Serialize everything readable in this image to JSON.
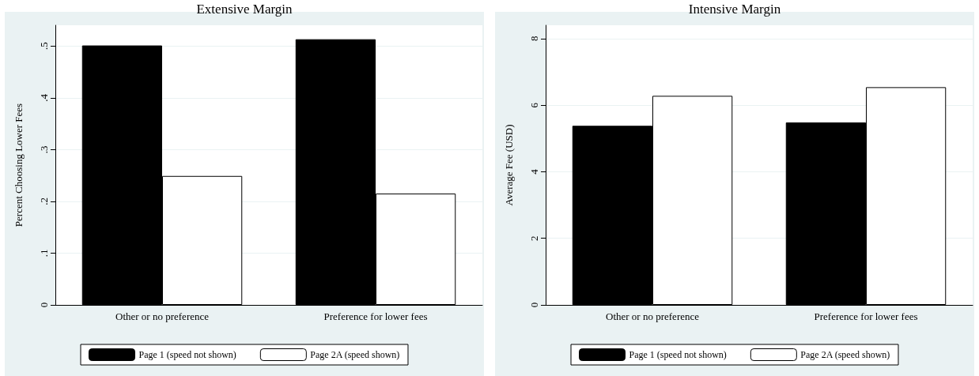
{
  "chart_data": [
    {
      "type": "bar",
      "title": "Extensive Margin",
      "ylabel": "Percent Choosing Lower Fees",
      "categories": [
        "Other or no preference",
        "Preference for lower fees"
      ],
      "series": [
        {
          "name": "Page 1 (speed not shown)",
          "color": "#000000",
          "values": [
            0.501,
            0.513
          ]
        },
        {
          "name": "Page 2A (speed shown)",
          "color": "#ffffff",
          "values": [
            0.249,
            0.215
          ]
        }
      ],
      "ylim": [
        0,
        0.54
      ],
      "yticks": [
        {
          "value": 0,
          "label": "0"
        },
        {
          "value": 0.1,
          "label": ".1"
        },
        {
          "value": 0.2,
          "label": ".2"
        },
        {
          "value": 0.3,
          "label": ".3"
        },
        {
          "value": 0.4,
          "label": ".4"
        },
        {
          "value": 0.5,
          "label": ".5"
        }
      ],
      "grid": "y",
      "legend": "bottom"
    },
    {
      "type": "bar",
      "title": "Intensive Margin",
      "ylabel": "Average Fee (USD)",
      "categories": [
        "Other or no preference",
        "Preference for lower fees"
      ],
      "series": [
        {
          "name": "Page 1 (speed not shown)",
          "color": "#000000",
          "values": [
            5.38,
            5.48
          ]
        },
        {
          "name": "Page 2A (speed shown)",
          "color": "#ffffff",
          "values": [
            6.28,
            6.54
          ]
        }
      ],
      "ylim": [
        0,
        8.4
      ],
      "yticks": [
        0,
        2,
        4,
        6,
        8
      ],
      "grid": "y",
      "legend": "bottom"
    }
  ]
}
